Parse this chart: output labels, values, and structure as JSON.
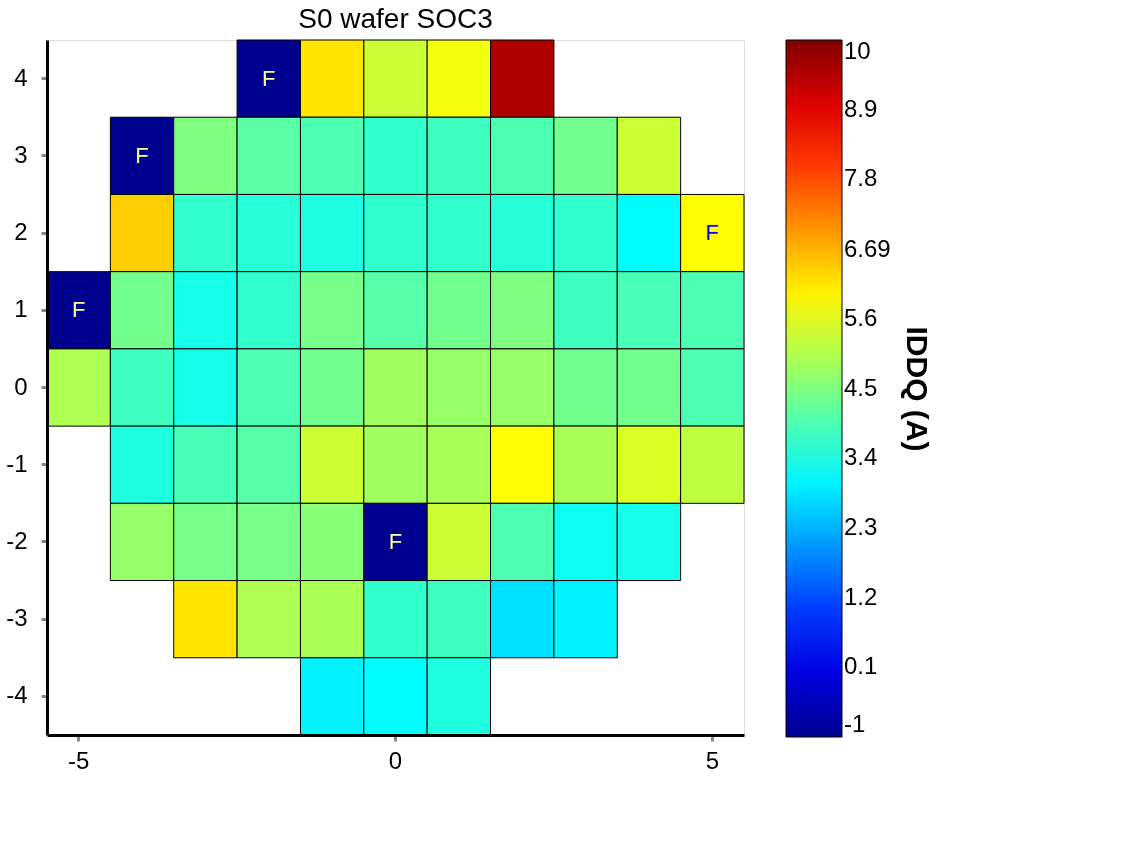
{
  "chart_data": {
    "type": "heatmap",
    "title": "S0 wafer SOC3",
    "clabel": "IDDQ (A)",
    "categories": [
      "-5",
      null,
      null,
      null,
      null,
      "0",
      null,
      null,
      null,
      null,
      "5"
    ],
    "y_categories": [
      "4",
      "3",
      "2",
      "1",
      "0",
      "-1",
      "-2",
      "-3",
      "-4"
    ],
    "cells": [
      [
        null,
        null,
        null,
        -1,
        6.15,
        5.3,
        5.75,
        9.5,
        null,
        null,
        null
      ],
      [
        null,
        -1,
        4.5,
        4.1,
        3.95,
        3.65,
        3.8,
        3.95,
        4.35,
        5.3,
        null
      ],
      [
        null,
        6.4,
        3.65,
        3.55,
        3.45,
        3.65,
        3.65,
        3.55,
        3.65,
        3.1,
        5.9
      ],
      [
        -1,
        4.35,
        3.35,
        3.65,
        4.4,
        4.05,
        4.35,
        4.5,
        3.8,
        3.9,
        3.95
      ],
      [
        5.0,
        3.8,
        3.35,
        3.95,
        4.35,
        4.85,
        4.75,
        4.75,
        4.35,
        4.35,
        3.95
      ],
      [
        null,
        3.45,
        3.9,
        4.05,
        5.3,
        4.85,
        4.95,
        5.9,
        4.95,
        5.5,
        5.2
      ],
      [
        null,
        4.75,
        4.4,
        4.4,
        4.6,
        -1,
        5.3,
        3.95,
        3.25,
        3.35,
        null
      ],
      [
        null,
        null,
        6.15,
        5.0,
        4.95,
        3.65,
        3.8,
        2.8,
        3.0,
        null,
        null
      ],
      [
        null,
        null,
        null,
        null,
        3.0,
        3.1,
        3.45,
        null,
        null,
        null,
        null
      ]
    ],
    "cell_labels": [
      [
        null,
        null,
        null,
        "F",
        null,
        null,
        null,
        null,
        null,
        null,
        null
      ],
      [
        null,
        "F",
        null,
        null,
        null,
        null,
        null,
        null,
        null,
        null,
        null
      ],
      [
        null,
        null,
        null,
        null,
        null,
        null,
        null,
        null,
        null,
        null,
        "F"
      ],
      [
        "F",
        null,
        null,
        null,
        null,
        null,
        null,
        null,
        null,
        null,
        null
      ],
      [
        null,
        null,
        null,
        null,
        null,
        null,
        null,
        null,
        null,
        null,
        null
      ],
      [
        null,
        null,
        null,
        null,
        null,
        null,
        null,
        null,
        null,
        null,
        null
      ],
      [
        null,
        null,
        null,
        null,
        null,
        "F",
        null,
        null,
        null,
        null,
        null
      ],
      [
        null,
        null,
        null,
        null,
        null,
        null,
        null,
        null,
        null,
        null,
        null
      ],
      [
        null,
        null,
        null,
        null,
        null,
        null,
        null,
        null,
        null,
        null,
        null
      ]
    ],
    "clim": [
      -1,
      10
    ],
    "cticks": [
      -1,
      0.1,
      1.2,
      2.3,
      3.4,
      4.5,
      5.6,
      6.69,
      7.8,
      8.9,
      10
    ],
    "grid": false
  }
}
